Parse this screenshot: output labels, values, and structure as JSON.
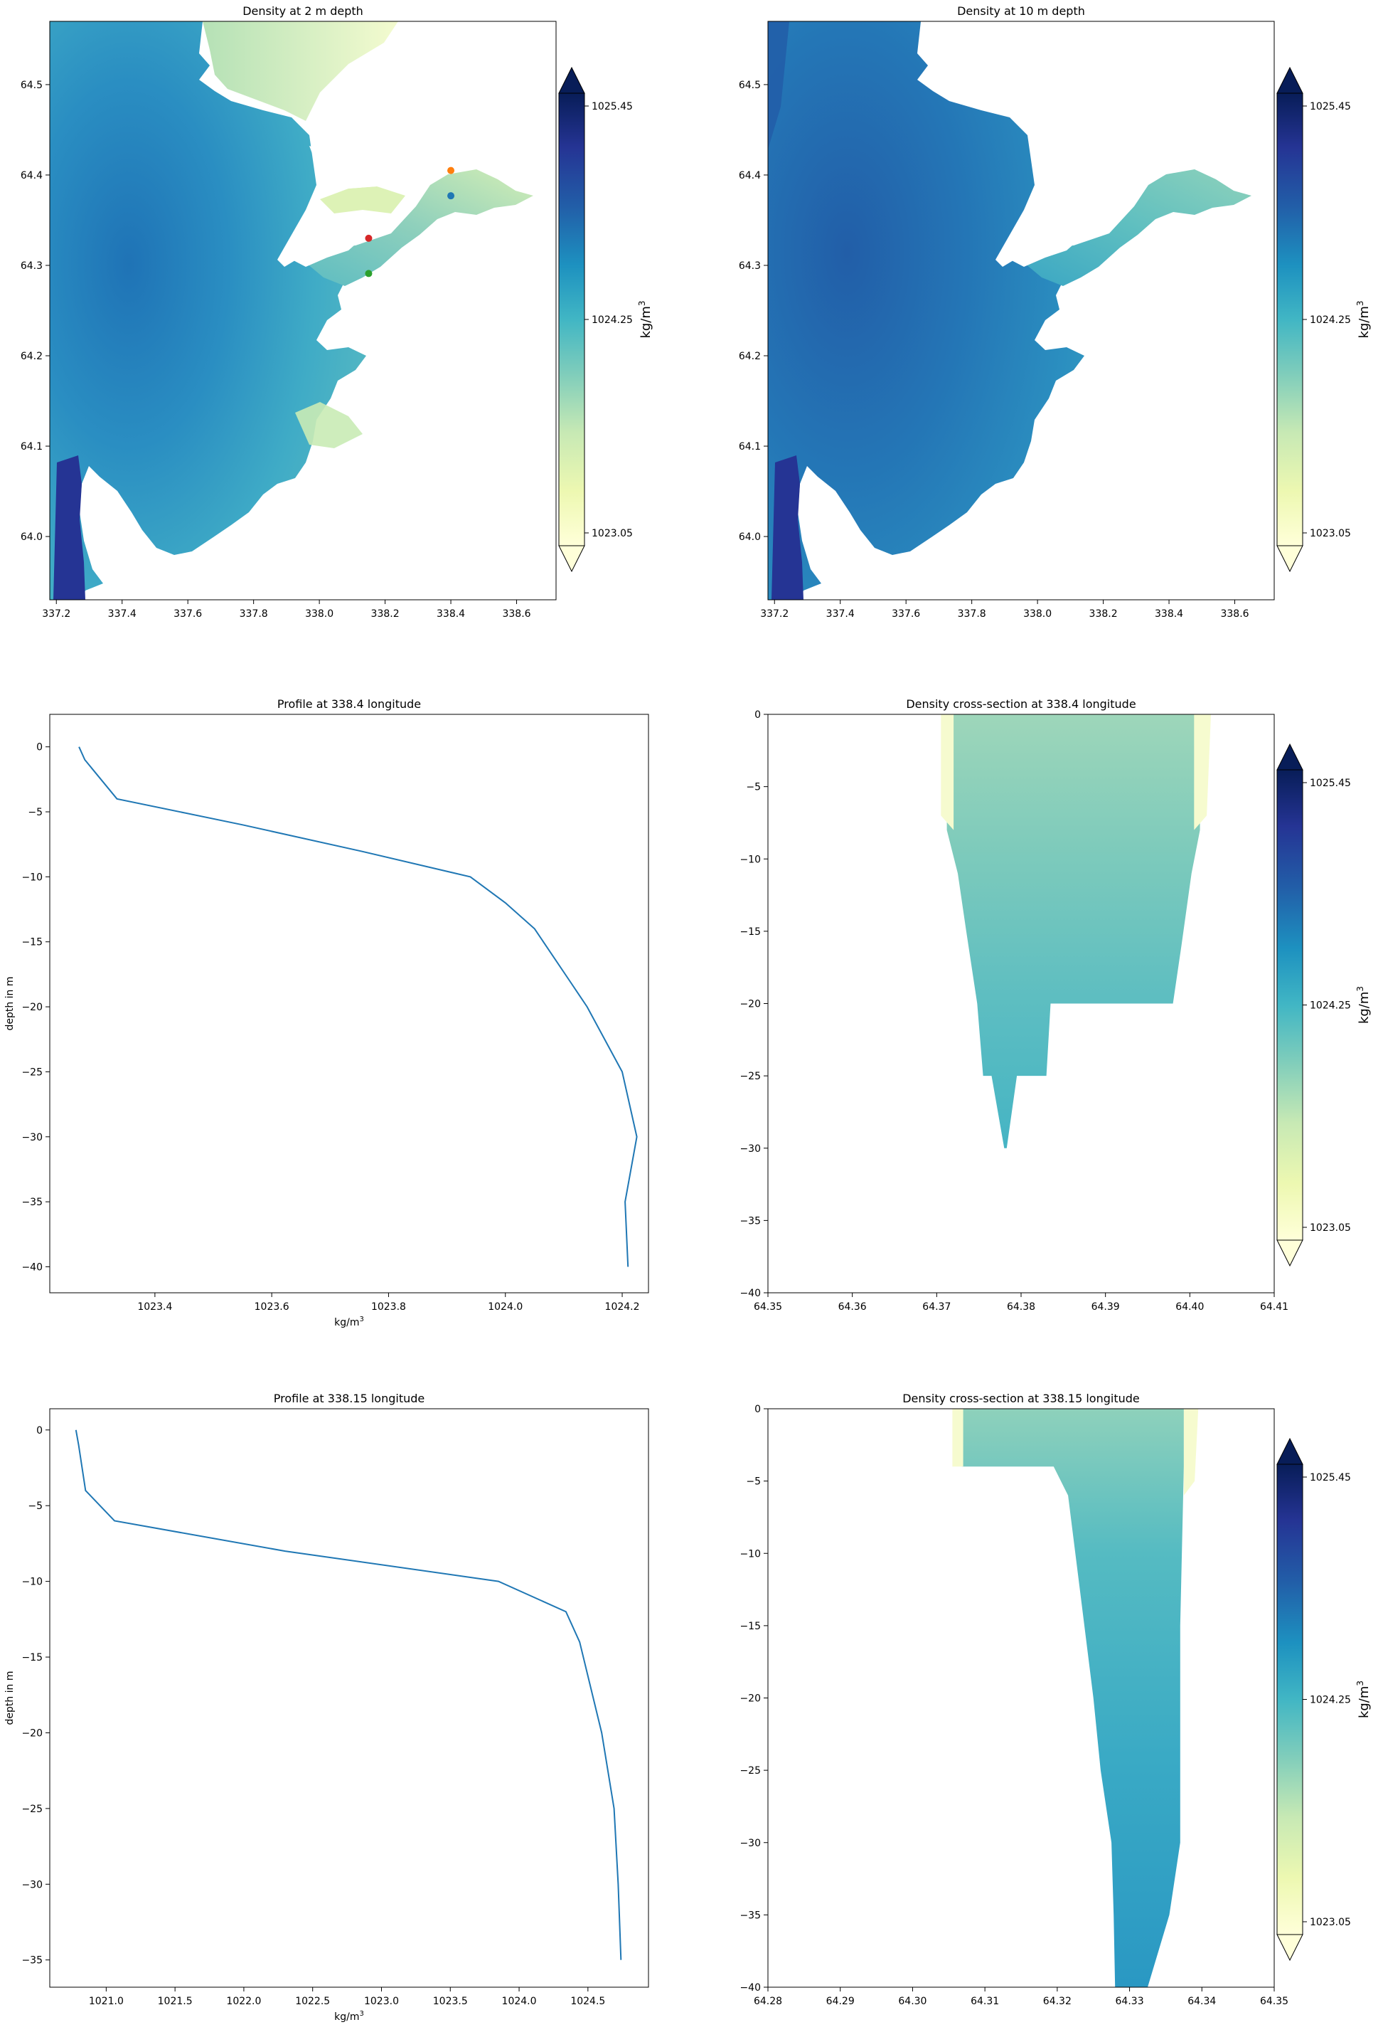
{
  "colorbar": {
    "min_label": "1023.05",
    "mid_label": "1024.25",
    "max_label": "1025.45",
    "unit_label": "kg/m",
    "unit_sup": "3",
    "stops": [
      "#ffffd9",
      "#edf8b1",
      "#c7e9b4",
      "#7fcdbb",
      "#41b6c4",
      "#1d91c0",
      "#225ea8",
      "#253494",
      "#081d58"
    ]
  },
  "chart_data": [
    {
      "id": "map2",
      "type": "heatmap",
      "title": "Density at 2 m depth",
      "xlim": [
        337.18,
        338.72
      ],
      "ylim": [
        63.93,
        64.57
      ],
      "xticks": [
        "337.2",
        "337.4",
        "337.6",
        "337.8",
        "338.0",
        "338.2",
        "338.4",
        "338.6"
      ],
      "yticks": [
        "64.0",
        "64.1",
        "64.2",
        "64.3",
        "64.4",
        "64.5"
      ],
      "markers": [
        {
          "lon": 338.4,
          "lat": 64.405,
          "color": "#ff7f0e"
        },
        {
          "lon": 338.4,
          "lat": 64.377,
          "color": "#1f77b4"
        },
        {
          "lon": 338.15,
          "lat": 64.33,
          "color": "#d62728"
        },
        {
          "lon": 338.15,
          "lat": 64.291,
          "color": "#2ca02c"
        }
      ]
    },
    {
      "id": "map10",
      "type": "heatmap",
      "title": "Density at 10 m depth",
      "xlim": [
        337.18,
        338.72
      ],
      "ylim": [
        63.93,
        64.57
      ],
      "xticks": [
        "337.2",
        "337.4",
        "337.6",
        "337.8",
        "338.0",
        "338.2",
        "338.4",
        "338.6"
      ],
      "yticks": [
        "64.0",
        "64.1",
        "64.2",
        "64.3",
        "64.4",
        "64.5"
      ]
    },
    {
      "id": "prof1",
      "type": "line",
      "title": "Profile at 338.4 longitude",
      "xlabel": "kg/m",
      "xlabel_sup": "3",
      "ylabel": "depth in m",
      "xlim": [
        1023.22,
        1024.245
      ],
      "ylim": [
        -42,
        2.5
      ],
      "xticks": [
        1023.4,
        1023.6,
        1023.8,
        1024.0,
        1024.2
      ],
      "xtick_labels": [
        "1023.4",
        "1023.6",
        "1023.8",
        "1024.0",
        "1024.2"
      ],
      "yticks": [
        0,
        -5,
        -10,
        -15,
        -20,
        -25,
        -30,
        -35,
        -40
      ],
      "ytick_labels": [
        "0",
        "−5",
        "−10",
        "−15",
        "−20",
        "−25",
        "−30",
        "−35",
        "−40"
      ],
      "x": [
        1023.27,
        1023.28,
        1023.335,
        1023.55,
        1023.75,
        1023.94,
        1024.0,
        1024.05,
        1024.11,
        1024.14,
        1024.2,
        1024.225,
        1024.205,
        1024.21
      ],
      "y": [
        0,
        -1,
        -4,
        -6,
        -8,
        -10,
        -12,
        -14,
        -18,
        -20,
        -25,
        -30,
        -35,
        -40
      ]
    },
    {
      "id": "sect1",
      "type": "heatmap",
      "title": "Density cross-section at 338.4 longitude",
      "xlim": [
        64.35,
        64.41
      ],
      "ylim": [
        -40,
        0
      ],
      "xticks": [
        64.35,
        64.36,
        64.37,
        64.38,
        64.39,
        64.4,
        64.41
      ],
      "xtick_labels": [
        "64.35",
        "64.36",
        "64.37",
        "64.38",
        "64.39",
        "64.40",
        "64.41"
      ],
      "yticks": [
        0,
        -5,
        -10,
        -15,
        -20,
        -25,
        -30,
        -35,
        -40
      ],
      "ytick_labels": [
        "0",
        "−5",
        "−10",
        "−15",
        "−20",
        "−25",
        "−30",
        "−35",
        "−40"
      ]
    },
    {
      "id": "prof2",
      "type": "line",
      "title": "Profile at 338.15 longitude",
      "xlabel": "kg/m",
      "xlabel_sup": "3",
      "ylabel": "depth in m",
      "xlim": [
        1020.59,
        1024.94
      ],
      "ylim": [
        -36.8,
        1.4
      ],
      "xticks": [
        1021.0,
        1021.5,
        1022.0,
        1022.5,
        1023.0,
        1023.5,
        1024.0,
        1024.5
      ],
      "xtick_labels": [
        "1021.0",
        "1021.5",
        "1022.0",
        "1022.5",
        "1023.0",
        "1023.5",
        "1024.0",
        "1024.5"
      ],
      "yticks": [
        0,
        -5,
        -10,
        -15,
        -20,
        -25,
        -30,
        -35
      ],
      "ytick_labels": [
        "0",
        "−5",
        "−10",
        "−15",
        "−20",
        "−25",
        "−30",
        "−35"
      ],
      "x": [
        1020.78,
        1020.8,
        1020.85,
        1021.06,
        1022.3,
        1023.85,
        1024.34,
        1024.44,
        1024.6,
        1024.69,
        1024.72,
        1024.74
      ],
      "y": [
        0,
        -1,
        -4,
        -6,
        -8,
        -10,
        -12,
        -14,
        -20,
        -25,
        -30,
        -35
      ]
    },
    {
      "id": "sect2",
      "type": "heatmap",
      "title": "Density cross-section at 338.15 longitude",
      "xlim": [
        64.28,
        64.35
      ],
      "ylim": [
        -40,
        0
      ],
      "xticks": [
        64.28,
        64.29,
        64.3,
        64.31,
        64.32,
        64.33,
        64.34,
        64.35
      ],
      "xtick_labels": [
        "64.28",
        "64.29",
        "64.30",
        "64.31",
        "64.32",
        "64.33",
        "64.34",
        "64.35"
      ],
      "yticks": [
        0,
        -5,
        -10,
        -15,
        -20,
        -25,
        -30,
        -35,
        -40
      ],
      "ytick_labels": [
        "0",
        "−5",
        "−10",
        "−15",
        "−20",
        "−25",
        "−30",
        "−35",
        "−40"
      ]
    }
  ]
}
